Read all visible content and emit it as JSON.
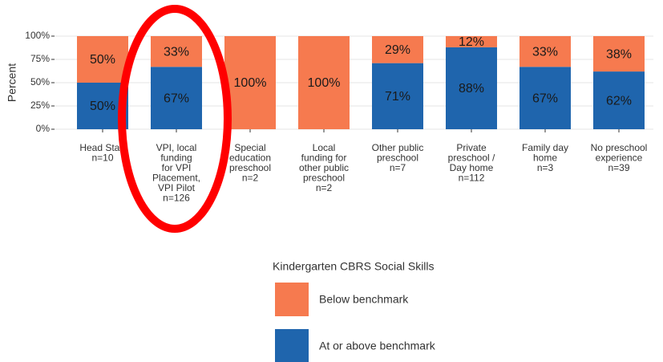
{
  "chart_data": {
    "type": "stacked_bar",
    "ylabel": "Percent",
    "categories": [
      [
        "Head Start",
        "n=10"
      ],
      [
        "VPI, local",
        "funding",
        "for VPI",
        "Placement,",
        "VPI Pilot",
        "n=126"
      ],
      [
        "Special",
        "education",
        "preschool",
        "n=2"
      ],
      [
        "Local",
        "funding for",
        "other public",
        "preschool",
        "n=2"
      ],
      [
        "Other public",
        "preschool",
        "n=7"
      ],
      [
        "Private",
        "preschool /",
        "Day home",
        "n=112"
      ],
      [
        "Family day",
        "home",
        "n=3"
      ],
      [
        "No preschool",
        "experience",
        "n=39"
      ]
    ],
    "series": [
      {
        "name": "At or above benchmark",
        "color": "#1f65ad",
        "values": [
          50,
          67,
          0,
          0,
          71,
          88,
          67,
          62
        ],
        "value_labels": [
          "50%",
          "67%",
          null,
          null,
          "71%",
          "88%",
          "67%",
          "62%"
        ]
      },
      {
        "name": "Below benchmark",
        "color": "#f67a4f",
        "values": [
          50,
          33,
          100,
          100,
          29,
          12,
          33,
          38
        ],
        "value_labels": [
          "50%",
          "33%",
          "100%",
          "100%",
          "29%",
          "12%",
          "33%",
          "38%"
        ]
      }
    ],
    "ylim": [
      0,
      100
    ],
    "yticks": [
      {
        "value": 0,
        "label": "0%"
      },
      {
        "value": 25,
        "label": "25%"
      },
      {
        "value": 50,
        "label": "50%"
      },
      {
        "value": 75,
        "label": "75%"
      },
      {
        "value": 100,
        "label": "100%"
      }
    ],
    "grid": true,
    "legend_title": "Kindergarten CBRS Social Skills",
    "legend": "bottom"
  }
}
